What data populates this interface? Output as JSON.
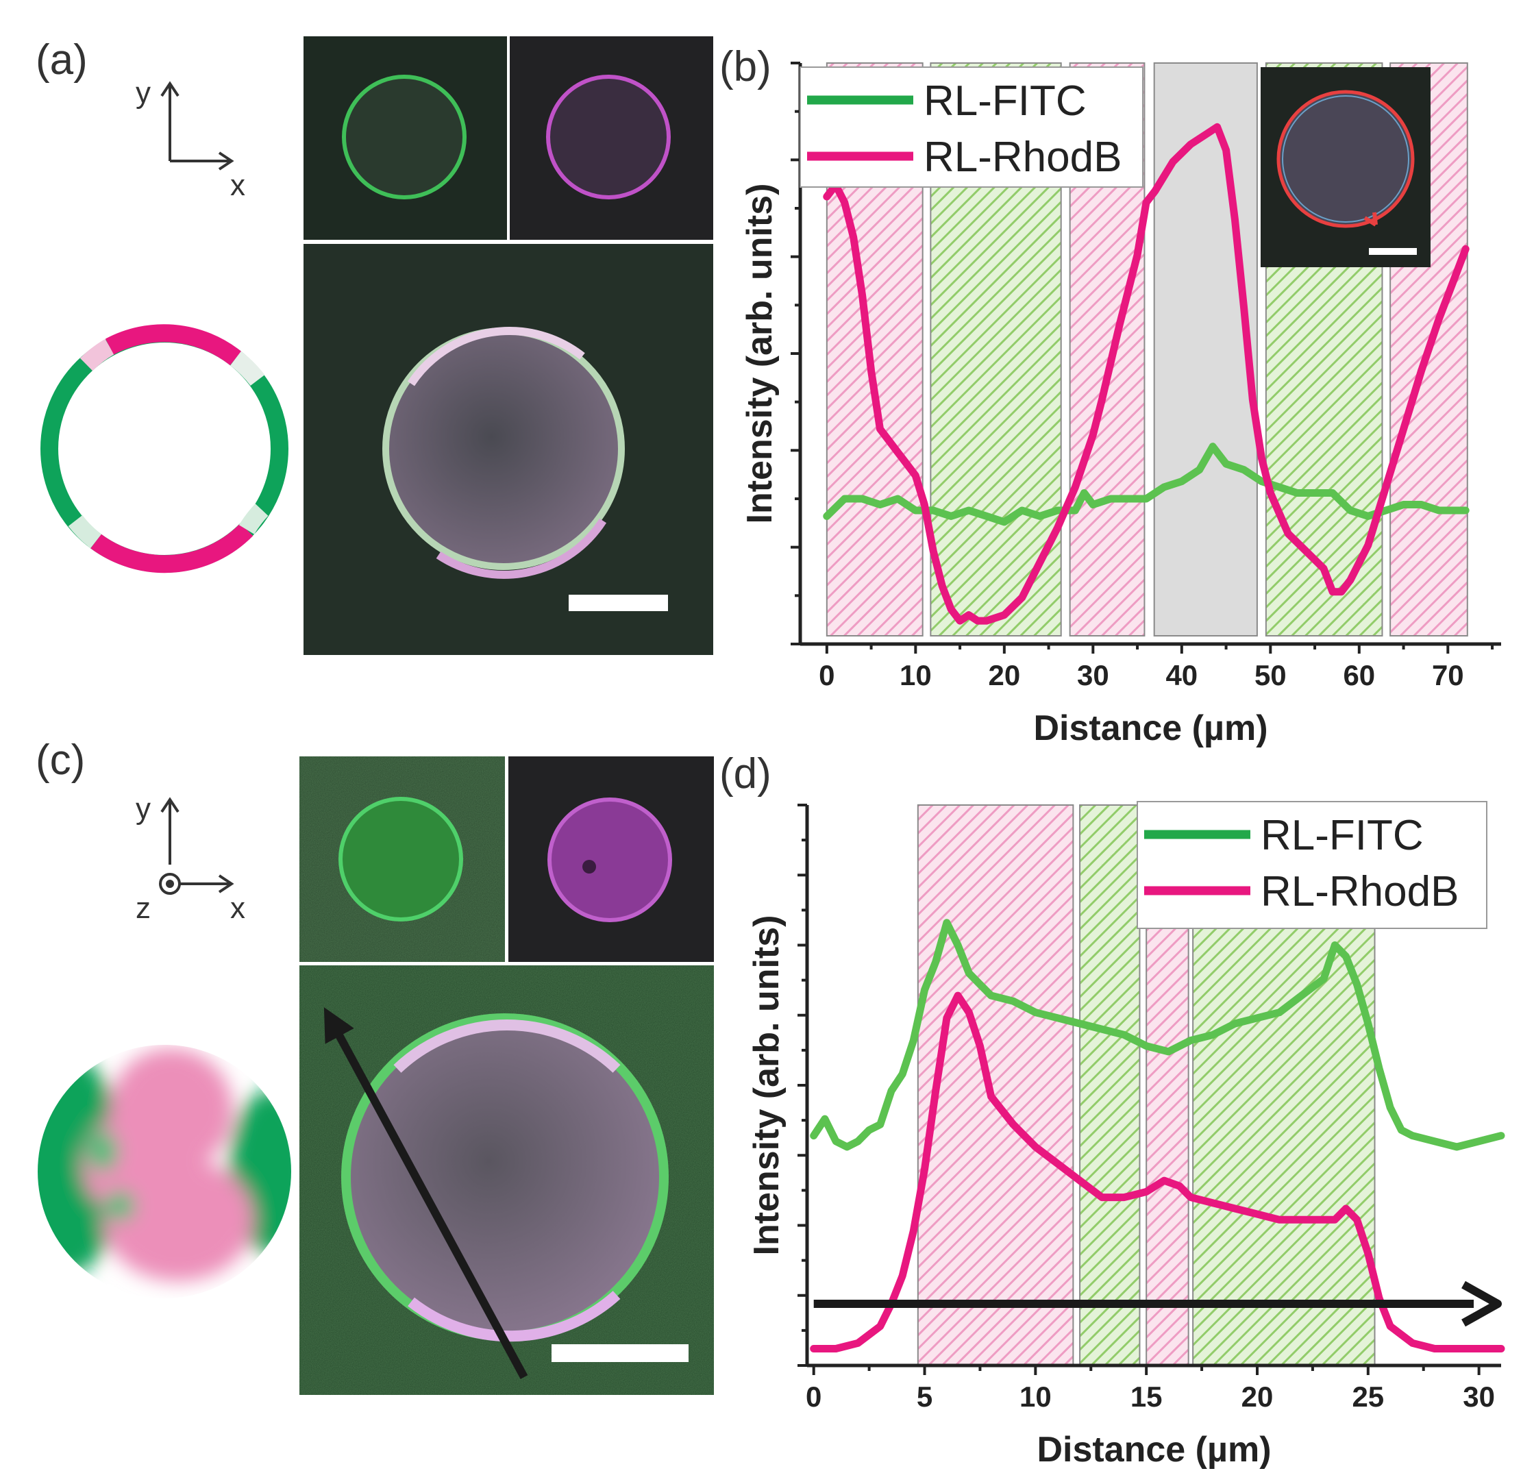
{
  "panels": {
    "a": "(a)",
    "b": "(b)",
    "c": "(c)",
    "d": "(d)"
  },
  "axes_a": {
    "y": "y",
    "x": "x"
  },
  "axes_c": {
    "y": "y",
    "x": "x",
    "z": "z"
  },
  "colors": {
    "fitc": "#5cc250",
    "rhodb": "#e8177f",
    "legend_fitc": "#22a84a",
    "hatch_pink": "#f2b8d3",
    "hatch_green": "#a8d888",
    "gray_band": "#dcdcdc",
    "cartoon_green": "#0ea35a",
    "cartoon_pink": "#e8177f"
  },
  "chart_data": [
    {
      "id": "b",
      "type": "line",
      "title": "",
      "xlabel": "Distance (µm)",
      "ylabel": "Intensity (arb. units)",
      "xlim": [
        -3,
        76
      ],
      "ylim": [
        0,
        100
      ],
      "xticks": [
        0,
        10,
        20,
        30,
        40,
        50,
        60,
        70
      ],
      "legend": {
        "position": "top-left",
        "entries": [
          "RL-FITC",
          "RL-RhodB"
        ]
      },
      "bands": [
        {
          "start": 0,
          "end": 10.8,
          "kind": "pink"
        },
        {
          "start": 11.7,
          "end": 26.4,
          "kind": "green"
        },
        {
          "start": 27.4,
          "end": 35.8,
          "kind": "pink"
        },
        {
          "start": 36.9,
          "end": 48.5,
          "kind": "gray"
        },
        {
          "start": 49.5,
          "end": 62.6,
          "kind": "green"
        },
        {
          "start": 63.5,
          "end": 72.2,
          "kind": "pink"
        }
      ],
      "series": [
        {
          "name": "RL-FITC",
          "x": [
            0,
            2,
            4,
            6,
            8,
            10,
            12,
            14,
            16,
            18,
            20,
            22,
            24,
            26,
            28,
            29,
            30,
            32,
            34,
            36,
            38,
            40,
            42,
            43.5,
            45,
            47,
            49,
            51,
            53,
            55,
            57,
            59,
            61,
            63,
            65,
            67,
            69,
            71,
            72
          ],
          "y": [
            22,
            25,
            25,
            24,
            25,
            23,
            23,
            22,
            23,
            22,
            21,
            23,
            22,
            23,
            23,
            26,
            24,
            25,
            25,
            25,
            27,
            28,
            30,
            34,
            31,
            30,
            28,
            27,
            26,
            26,
            26,
            23,
            22,
            23,
            24,
            24,
            23,
            23,
            23
          ]
        },
        {
          "name": "RL-RhodB",
          "x": [
            0,
            1,
            2,
            3,
            4,
            5,
            6,
            7,
            8,
            9,
            10,
            11,
            12,
            13,
            14,
            15,
            16,
            17,
            18,
            20,
            22,
            24,
            26,
            28,
            30,
            31,
            33,
            35,
            36,
            37,
            39,
            41,
            43,
            44,
            45,
            46,
            47,
            48,
            49,
            50,
            52,
            54,
            56,
            57,
            58,
            59,
            61,
            63,
            65,
            67,
            69,
            71,
            72
          ],
          "y": [
            77,
            79,
            76,
            70,
            60,
            47,
            37,
            35,
            33,
            31,
            29,
            24,
            16,
            10,
            6,
            4,
            5,
            4,
            4,
            5,
            8,
            14,
            20,
            27,
            36,
            42,
            55,
            67,
            76,
            78,
            83,
            86,
            88,
            89,
            85,
            73,
            58,
            42,
            32,
            26,
            19,
            16,
            13,
            9,
            9,
            11,
            17,
            27,
            37,
            47,
            56,
            64,
            68
          ]
        }
      ],
      "inset": {
        "description": "vesicle image with red line profile"
      }
    },
    {
      "id": "d",
      "type": "line",
      "title": "",
      "xlabel": "Distance (µm)",
      "ylabel": "Intensity (arb. units)",
      "xlim": [
        -0.3,
        31
      ],
      "ylim": [
        0,
        100
      ],
      "xticks": [
        0,
        5,
        10,
        15,
        20,
        25,
        30
      ],
      "legend": {
        "position": "top-right",
        "entries": [
          "RL-FITC",
          "RL-RhodB"
        ]
      },
      "bands": [
        {
          "start": 4.7,
          "end": 11.7,
          "kind": "pink"
        },
        {
          "start": 12.0,
          "end": 14.7,
          "kind": "green"
        },
        {
          "start": 15.0,
          "end": 16.9,
          "kind": "pink"
        },
        {
          "start": 17.1,
          "end": 25.3,
          "kind": "green"
        }
      ],
      "series": [
        {
          "name": "RL-FITC",
          "x": [
            0,
            0.5,
            1,
            1.5,
            2,
            2.5,
            3,
            3.5,
            4,
            4.5,
            5,
            5.5,
            6,
            6.5,
            7,
            7.5,
            8,
            9,
            10,
            11,
            12,
            13,
            14,
            15,
            16,
            17,
            18,
            19,
            20,
            21,
            22,
            23,
            23.5,
            24,
            24.5,
            25,
            25.5,
            26,
            26.5,
            27,
            28,
            29,
            30,
            31
          ],
          "y": [
            41,
            44,
            40,
            39,
            40,
            42,
            43,
            49,
            52,
            58,
            67,
            72,
            79,
            75,
            70,
            68,
            66,
            65,
            63,
            62,
            61,
            60,
            59,
            57,
            56,
            58,
            59,
            61,
            62,
            63,
            66,
            69,
            75,
            73,
            68,
            61,
            53,
            46,
            42,
            41,
            40,
            39,
            40,
            41
          ]
        },
        {
          "name": "RL-RhodB",
          "x": [
            0,
            1,
            2,
            3,
            3.5,
            4,
            4.5,
            5,
            5.5,
            6,
            6.5,
            7,
            7.5,
            8,
            9,
            10,
            11,
            12,
            13,
            14,
            15,
            15.8,
            16.5,
            17,
            18,
            19,
            20,
            21,
            22,
            23,
            23.5,
            24,
            24.5,
            25,
            25.5,
            26,
            27,
            28,
            29,
            30,
            31
          ],
          "y": [
            3,
            3,
            4,
            7,
            11,
            16,
            24,
            35,
            49,
            62,
            66,
            63,
            57,
            48,
            43,
            39,
            36,
            33,
            30,
            30,
            31,
            33,
            32,
            30,
            29,
            28,
            27,
            26,
            26,
            26,
            26,
            28,
            26,
            20,
            12,
            7,
            4,
            3,
            3,
            3,
            3
          ]
        }
      ],
      "arrow": {
        "from": 0,
        "to": 31,
        "level": 11
      }
    }
  ]
}
